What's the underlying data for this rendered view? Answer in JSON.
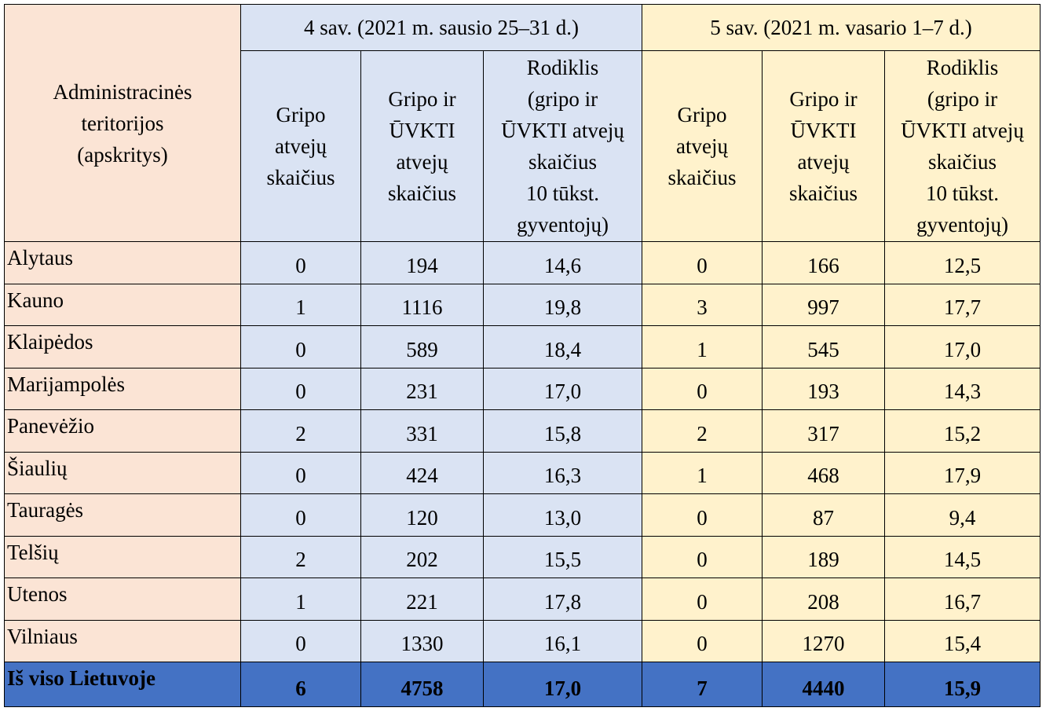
{
  "header": {
    "admin": "Administracinės\nteritorijos\n(apskritys)",
    "week4": "4 sav. (2021 m. sausio 25–31 d.)",
    "week5": "5 sav. (2021 m. vasario 1–7 d.)",
    "col_flu": "Gripo\natvejų\nskaičius",
    "col_flu_ari": "Gripo ir\nŪVKTI\natvejų\nskaičius",
    "col_rate": "Rodiklis\n(gripo ir\nŪVKTI atvejų\nskaičius\n10 tūkst.\ngyventojų)"
  },
  "rows": [
    {
      "name": "Alytaus",
      "w4_flu": "0",
      "w4_total": "194",
      "w4_rate": "14,6",
      "w5_flu": "0",
      "w5_total": "166",
      "w5_rate": "12,5"
    },
    {
      "name": "Kauno",
      "w4_flu": "1",
      "w4_total": "1116",
      "w4_rate": "19,8",
      "w5_flu": "3",
      "w5_total": "997",
      "w5_rate": "17,7"
    },
    {
      "name": "Klaipėdos",
      "w4_flu": "0",
      "w4_total": "589",
      "w4_rate": "18,4",
      "w5_flu": "1",
      "w5_total": "545",
      "w5_rate": "17,0"
    },
    {
      "name": "Marijampolės",
      "w4_flu": "0",
      "w4_total": "231",
      "w4_rate": "17,0",
      "w5_flu": "0",
      "w5_total": "193",
      "w5_rate": "14,3"
    },
    {
      "name": "Panevėžio",
      "w4_flu": "2",
      "w4_total": "331",
      "w4_rate": "15,8",
      "w5_flu": "2",
      "w5_total": "317",
      "w5_rate": "15,2"
    },
    {
      "name": "Šiaulių",
      "w4_flu": "0",
      "w4_total": "424",
      "w4_rate": "16,3",
      "w5_flu": "1",
      "w5_total": "468",
      "w5_rate": "17,9"
    },
    {
      "name": "Tauragės",
      "w4_flu": "0",
      "w4_total": "120",
      "w4_rate": "13,0",
      "w5_flu": "0",
      "w5_total": "87",
      "w5_rate": "9,4"
    },
    {
      "name": "Telšių",
      "w4_flu": "2",
      "w4_total": "202",
      "w4_rate": "15,5",
      "w5_flu": "0",
      "w5_total": "189",
      "w5_rate": "14,5"
    },
    {
      "name": "Utenos",
      "w4_flu": "1",
      "w4_total": "221",
      "w4_rate": "17,8",
      "w5_flu": "0",
      "w5_total": "208",
      "w5_rate": "16,7"
    },
    {
      "name": "Vilniaus",
      "w4_flu": "0",
      "w4_total": "1330",
      "w4_rate": "16,1",
      "w5_flu": "0",
      "w5_total": "1270",
      "w5_rate": "15,4"
    }
  ],
  "total": {
    "name": "Iš viso Lietuvoje",
    "w4_flu": "6",
    "w4_total": "4758",
    "w4_rate": "17,0",
    "w5_flu": "7",
    "w5_total": "4440",
    "w5_rate": "15,9"
  },
  "colors": {
    "pink": "#fbe4d5",
    "blue": "#dae3f3",
    "yellow": "#fff2cc",
    "total": "#4472c4"
  }
}
